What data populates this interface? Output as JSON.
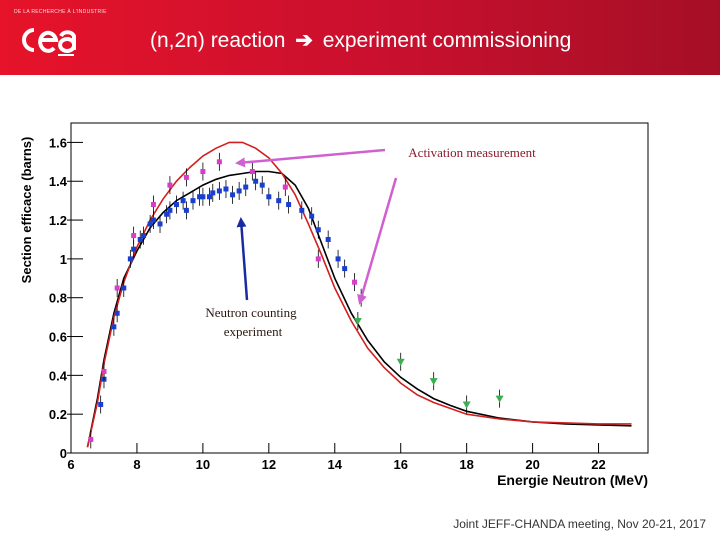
{
  "header": {
    "logo_tagline": "DE LA RECHERCHE À L'INDUSTRIE",
    "title_left": "(n,2n) reaction",
    "title_right": "experiment commissioning",
    "bg_color": "#c8102e"
  },
  "footer": {
    "text": "Joint JEFF-CHANDA meeting, Nov 20-21, 2017"
  },
  "chart_data": {
    "type": "scatter",
    "xlabel": "Energie Neutron (MeV)",
    "ylabel": "Section efficace (barns)",
    "xlim": [
      6,
      23.5
    ],
    "ylim": [
      0,
      1.7
    ],
    "xticks": [
      6,
      8,
      10,
      12,
      14,
      16,
      18,
      20,
      22
    ],
    "yticks": [
      0,
      0.2,
      0.4,
      0.6,
      0.8,
      1,
      1.2,
      1.4,
      1.6
    ],
    "ytick_labels": [
      "0",
      "0.2",
      "0.4",
      "0.6",
      "0.8",
      "1",
      "1.2",
      "1.4",
      "1.6"
    ],
    "annotations": [
      {
        "text_lines": [
          "Activation measurement"
        ],
        "color": "#8b1a2b"
      },
      {
        "text_lines": [
          "Neutron counting",
          "experiment"
        ],
        "color": "#2a1a10"
      }
    ],
    "series": [
      {
        "name": "evaluation-black",
        "kind": "line",
        "color": "#000000",
        "x": [
          6.5,
          6.8,
          7.0,
          7.3,
          7.6,
          8.0,
          8.4,
          8.8,
          9.2,
          9.6,
          10.0,
          10.4,
          10.8,
          11.2,
          11.6,
          12.0,
          12.4,
          12.8,
          13.2,
          13.6,
          14.0,
          14.5,
          15.0,
          15.5,
          16.0,
          16.5,
          17.0,
          17.5,
          18.0,
          19.0,
          20.0,
          21.0,
          22.0,
          23.0
        ],
        "y": [
          0.03,
          0.28,
          0.48,
          0.72,
          0.9,
          1.04,
          1.16,
          1.24,
          1.3,
          1.34,
          1.38,
          1.41,
          1.43,
          1.44,
          1.45,
          1.45,
          1.44,
          1.38,
          1.26,
          1.08,
          0.9,
          0.72,
          0.58,
          0.47,
          0.39,
          0.33,
          0.28,
          0.245,
          0.215,
          0.18,
          0.16,
          0.15,
          0.145,
          0.14
        ]
      },
      {
        "name": "evaluation-red",
        "kind": "line",
        "color": "#d22020",
        "x": [
          6.5,
          6.8,
          7.0,
          7.3,
          7.6,
          8.0,
          8.4,
          8.8,
          9.2,
          9.6,
          10.0,
          10.4,
          10.8,
          11.2,
          11.6,
          12.0,
          12.4,
          12.8,
          13.2,
          13.6,
          14.0,
          14.5,
          15.0,
          15.5,
          16.0,
          16.5,
          17.0,
          17.5,
          18.0,
          19.0,
          20.0,
          21.0,
          22.0,
          23.0
        ],
        "y": [
          0.03,
          0.26,
          0.46,
          0.7,
          0.88,
          1.06,
          1.2,
          1.31,
          1.4,
          1.47,
          1.53,
          1.57,
          1.6,
          1.6,
          1.57,
          1.52,
          1.44,
          1.33,
          1.18,
          1.02,
          0.85,
          0.68,
          0.54,
          0.44,
          0.36,
          0.3,
          0.26,
          0.23,
          0.2,
          0.175,
          0.16,
          0.155,
          0.15,
          0.15
        ]
      },
      {
        "name": "neutron-counting",
        "kind": "points",
        "marker": "square",
        "color": "#1a3fd0",
        "x": [
          6.9,
          7.0,
          7.3,
          7.4,
          7.6,
          7.8,
          7.9,
          8.1,
          8.2,
          8.4,
          8.5,
          8.7,
          8.9,
          9.0,
          9.2,
          9.4,
          9.5,
          9.7,
          9.9,
          10.0,
          10.2,
          10.3,
          10.5,
          10.7,
          10.9,
          11.1,
          11.3,
          11.6,
          11.8,
          12.0,
          12.3,
          12.6,
          13.0,
          13.3,
          13.5,
          13.8,
          14.1,
          14.3,
          14.8
        ],
        "y": [
          0.25,
          0.38,
          0.65,
          0.72,
          0.85,
          1.0,
          1.05,
          1.1,
          1.12,
          1.18,
          1.2,
          1.18,
          1.23,
          1.25,
          1.28,
          1.3,
          1.25,
          1.3,
          1.32,
          1.32,
          1.32,
          1.34,
          1.35,
          1.36,
          1.33,
          1.35,
          1.37,
          1.4,
          1.38,
          1.32,
          1.3,
          1.28,
          1.25,
          1.22,
          1.15,
          1.1,
          1.0,
          0.95,
          0.8
        ]
      },
      {
        "name": "activation",
        "kind": "points",
        "marker": "square",
        "color": "#d83cc8",
        "x": [
          6.6,
          7.0,
          7.4,
          7.9,
          8.5,
          9.0,
          9.5,
          10.0,
          10.5,
          11.5,
          12.5,
          13.5,
          14.6
        ],
        "y": [
          0.07,
          0.42,
          0.85,
          1.12,
          1.28,
          1.38,
          1.42,
          1.45,
          1.5,
          1.45,
          1.37,
          1.0,
          0.88
        ]
      },
      {
        "name": "green-points",
        "kind": "points",
        "marker": "triangle",
        "color": "#3cb050",
        "x": [
          14.7,
          16.0,
          17.0,
          18.0,
          19.0
        ],
        "y": [
          0.68,
          0.47,
          0.37,
          0.25,
          0.28
        ]
      }
    ]
  }
}
